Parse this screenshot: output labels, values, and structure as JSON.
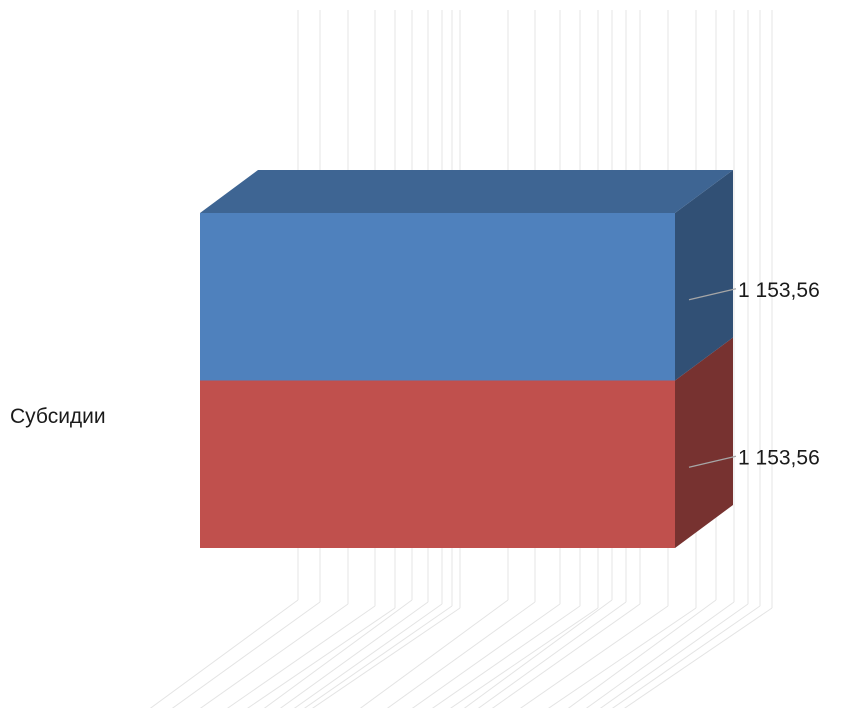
{
  "chart_data": {
    "type": "bar",
    "orientation": "horizontal",
    "stacked": true,
    "three_d": true,
    "categories": [
      "Субсидии"
    ],
    "series": [
      {
        "values": [
          1153.56
        ],
        "label": "1 153,56",
        "color": "#c0504d"
      },
      {
        "values": [
          1153.56
        ],
        "label": "1 153,56",
        "color": "#4f81bd"
      }
    ],
    "title": "",
    "xlabel": "",
    "ylabel": "",
    "grid": true,
    "legend": "none"
  }
}
